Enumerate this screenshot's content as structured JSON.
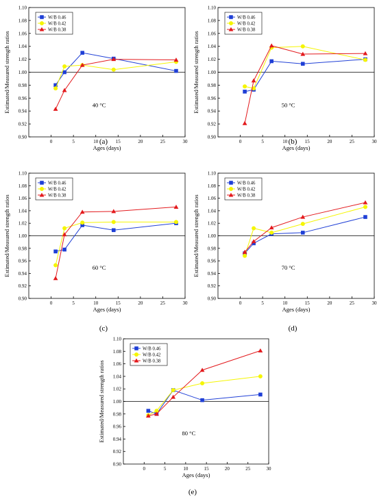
{
  "chart_data": [
    {
      "type": "line",
      "panel_label": "(a)",
      "annotation": "40 °C",
      "xlabel": "Ages (days)",
      "ylabel": "Estimated/Measured strength ratios",
      "xlim": [
        -5,
        30
      ],
      "ylim": [
        0.9,
        1.1
      ],
      "xticks": [
        0,
        5,
        10,
        15,
        20,
        25,
        30
      ],
      "yticks": [
        0.9,
        0.92,
        0.94,
        0.96,
        0.98,
        1.0,
        1.02,
        1.04,
        1.06,
        1.08,
        1.1
      ],
      "reference_line": 1.0,
      "legend_position": "top-left",
      "x": [
        1,
        3,
        7,
        14,
        28
      ],
      "series": [
        {
          "name": "W/B 0.46",
          "color": "#1f3fd6",
          "marker": "square",
          "values": [
            0.98,
            1.0,
            1.03,
            1.021,
            1.002
          ]
        },
        {
          "name": "W/B 0.42",
          "color": "#f5f500",
          "marker": "circle",
          "values": [
            0.975,
            1.009,
            1.011,
            1.004,
            1.016
          ]
        },
        {
          "name": "W/B 0.38",
          "color": "#e3191c",
          "marker": "triangle",
          "values": [
            0.943,
            0.972,
            1.011,
            1.02,
            1.019
          ]
        }
      ]
    },
    {
      "type": "line",
      "panel_label": "(b)",
      "annotation": "50 °C",
      "xlabel": "Ages (days)",
      "ylabel": "Estimated/Measured strength ratios",
      "xlim": [
        -5,
        30
      ],
      "ylim": [
        0.9,
        1.1
      ],
      "xticks": [
        0,
        5,
        10,
        15,
        20,
        25,
        30
      ],
      "yticks": [
        0.9,
        0.92,
        0.94,
        0.96,
        0.98,
        1.0,
        1.02,
        1.04,
        1.06,
        1.08,
        1.1
      ],
      "reference_line": 1.0,
      "legend_position": "top-left",
      "x": [
        1,
        3,
        7,
        14,
        28
      ],
      "series": [
        {
          "name": "W/B 0.46",
          "color": "#1f3fd6",
          "marker": "square",
          "values": [
            0.97,
            0.973,
            1.017,
            1.013,
            1.02
          ]
        },
        {
          "name": "W/B 0.42",
          "color": "#f5f500",
          "marker": "circle",
          "values": [
            0.978,
            0.975,
            1.038,
            1.04,
            1.019
          ]
        },
        {
          "name": "W/B 0.38",
          "color": "#e3191c",
          "marker": "triangle",
          "values": [
            0.921,
            0.987,
            1.041,
            1.028,
            1.029
          ]
        }
      ]
    },
    {
      "type": "line",
      "panel_label": "(c)",
      "annotation": "60 °C",
      "xlabel": "Ages (days)",
      "ylabel": "Estimated/Measured strength ratios",
      "xlim": [
        -5,
        30
      ],
      "ylim": [
        0.9,
        1.1
      ],
      "xticks": [
        0,
        5,
        10,
        15,
        20,
        25,
        30
      ],
      "yticks": [
        0.9,
        0.92,
        0.94,
        0.96,
        0.98,
        1.0,
        1.02,
        1.04,
        1.06,
        1.08,
        1.1
      ],
      "reference_line": 1.0,
      "legend_position": "top-left",
      "x": [
        1,
        3,
        7,
        14,
        28
      ],
      "series": [
        {
          "name": "W/B 0.46",
          "color": "#1f3fd6",
          "marker": "square",
          "values": [
            0.975,
            0.978,
            1.017,
            1.009,
            1.02
          ]
        },
        {
          "name": "W/B 0.42",
          "color": "#f5f500",
          "marker": "circle",
          "values": [
            0.953,
            1.012,
            1.021,
            1.022,
            1.022
          ]
        },
        {
          "name": "W/B 0.38",
          "color": "#e3191c",
          "marker": "triangle",
          "values": [
            0.932,
            1.002,
            1.038,
            1.039,
            1.046
          ]
        }
      ]
    },
    {
      "type": "line",
      "panel_label": "(d)",
      "annotation": "70 °C",
      "xlabel": "Ages (days)",
      "ylabel": "Estimated/Measured strength ratios",
      "xlim": [
        -5,
        30
      ],
      "ylim": [
        0.9,
        1.1
      ],
      "xticks": [
        0,
        5,
        10,
        15,
        20,
        25,
        30
      ],
      "yticks": [
        0.9,
        0.92,
        0.94,
        0.96,
        0.98,
        1.0,
        1.02,
        1.04,
        1.06,
        1.08,
        1.1
      ],
      "reference_line": 1.0,
      "legend_position": "top-left",
      "x": [
        1,
        3,
        7,
        14,
        28
      ],
      "series": [
        {
          "name": "W/B 0.46",
          "color": "#1f3fd6",
          "marker": "square",
          "values": [
            0.972,
            0.988,
            1.003,
            1.005,
            1.03
          ]
        },
        {
          "name": "W/B 0.42",
          "color": "#f5f500",
          "marker": "circle",
          "values": [
            0.968,
            1.012,
            1.005,
            1.019,
            1.046
          ]
        },
        {
          "name": "W/B 0.38",
          "color": "#e3191c",
          "marker": "triangle",
          "values": [
            0.974,
            0.991,
            1.013,
            1.03,
            1.053
          ]
        }
      ]
    },
    {
      "type": "line",
      "panel_label": "(e)",
      "annotation": "80 °C",
      "xlabel": "Ages (days)",
      "ylabel": "Estimated/Measured strength ratios",
      "xlim": [
        -5,
        30
      ],
      "ylim": [
        0.9,
        1.1
      ],
      "xticks": [
        0,
        5,
        10,
        15,
        20,
        25,
        30
      ],
      "yticks": [
        0.9,
        0.92,
        0.94,
        0.96,
        0.98,
        1.0,
        1.02,
        1.04,
        1.06,
        1.08,
        1.1
      ],
      "reference_line": 1.0,
      "legend_position": "top-left",
      "x": [
        1,
        3,
        7,
        14,
        28
      ],
      "series": [
        {
          "name": "W/B 0.46",
          "color": "#1f3fd6",
          "marker": "square",
          "values": [
            0.985,
            0.98,
            1.018,
            1.002,
            1.011
          ]
        },
        {
          "name": "W/B 0.42",
          "color": "#f5f500",
          "marker": "circle",
          "values": [
            0.978,
            0.985,
            1.018,
            1.029,
            1.04
          ]
        },
        {
          "name": "W/B 0.38",
          "color": "#e3191c",
          "marker": "triangle",
          "values": [
            0.977,
            0.98,
            1.007,
            1.05,
            1.081
          ]
        }
      ]
    }
  ]
}
